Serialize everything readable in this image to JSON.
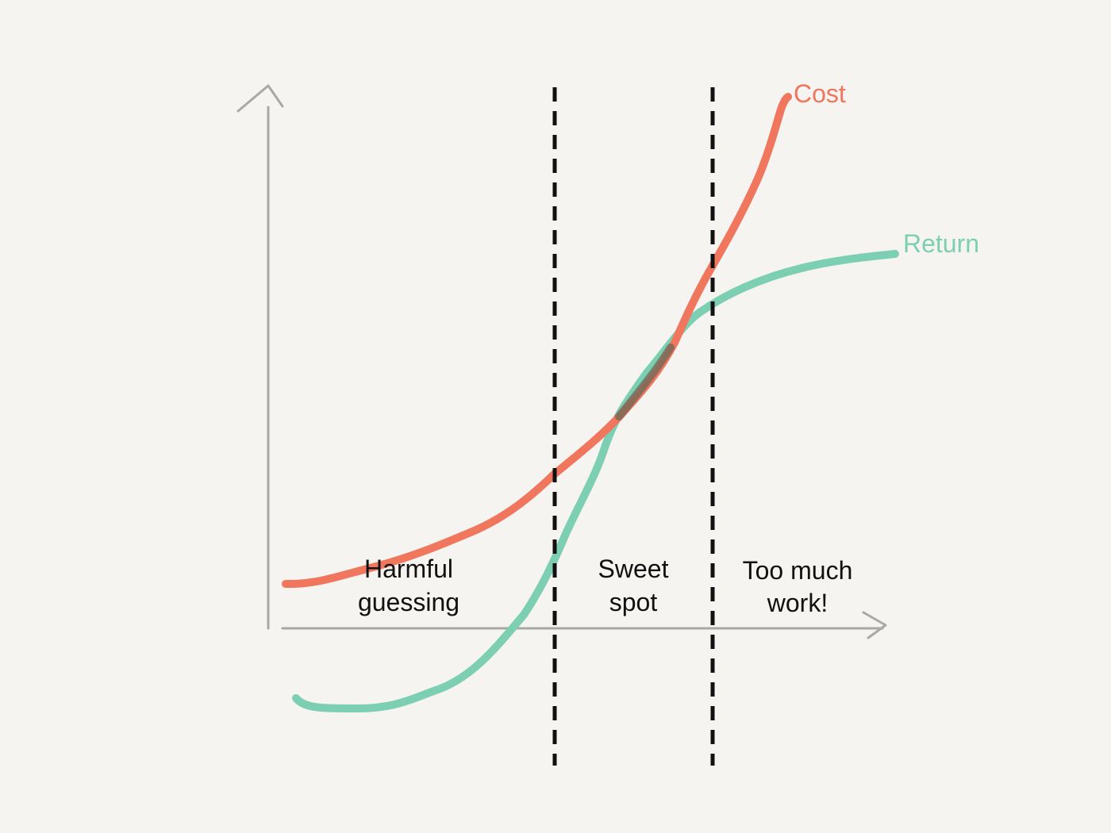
{
  "colors": {
    "background": "#f5f4f0",
    "axis": "#a8a8a8",
    "cost": "#f0765e",
    "return": "#7dcfb3",
    "divider": "#111111"
  },
  "labels": {
    "cost": "Cost",
    "return": "Return"
  },
  "regions": [
    {
      "line1": "Harmful",
      "line2": "guessing"
    },
    {
      "line1": "Sweet",
      "line2": "spot"
    },
    {
      "line1": "Too much",
      "line2": "work!"
    }
  ]
}
